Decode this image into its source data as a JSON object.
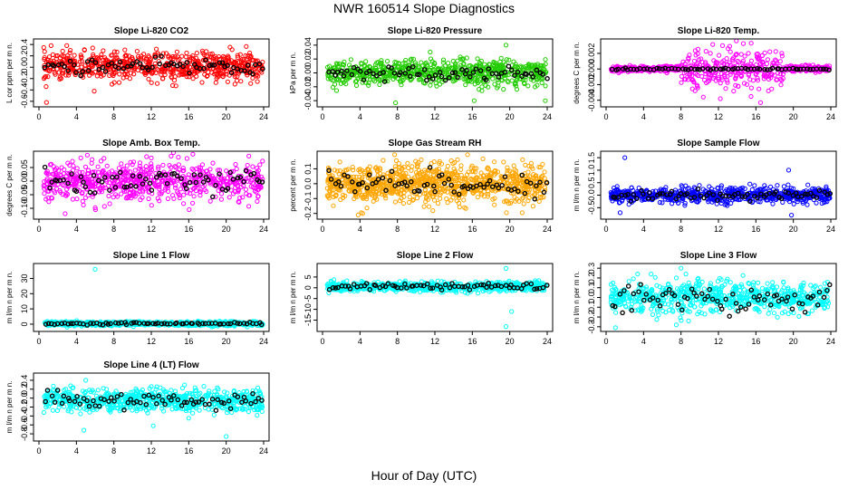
{
  "figure": {
    "title": "NWR  160514  Slope Diagnostics",
    "xlabel": "Hour of Day (UTC)"
  },
  "colors": {
    "red": "#ff0000",
    "green": "#22cc00",
    "magenta": "#ff00ff",
    "orange": "#ffa500",
    "blue": "#0000ff",
    "cyan": "#00ffff",
    "black": "#000000"
  },
  "chart_data": [
    {
      "type": "scatter",
      "title": "Slope Li-820 CO2",
      "ylabel": "L cor ppm per m n.",
      "color": "red",
      "xlim": [
        0,
        24
      ],
      "ylim": [
        -0.65,
        0.45
      ],
      "xticks": [
        0,
        4,
        8,
        12,
        16,
        20,
        24
      ],
      "yticks": [
        -0.6,
        -0.4,
        -0.2,
        0.0,
        0.2,
        0.4
      ],
      "ytick_labels": [
        "-0.6",
        "-0.4",
        "-0.2",
        "0.0",
        "0.2",
        "0.4"
      ],
      "center": 0.02,
      "spread": 0.12,
      "black_spread": 0.07,
      "outliers": [
        [
          0.8,
          -0.62
        ],
        [
          1.3,
          0.38
        ],
        [
          5.9,
          -0.42
        ],
        [
          7.8,
          -0.3
        ]
      ]
    },
    {
      "type": "scatter",
      "title": "Slope Li-820 Pressure",
      "ylabel": "kPa per m n.",
      "color": "green",
      "xlim": [
        0,
        24
      ],
      "ylim": [
        -0.045,
        0.045
      ],
      "xticks": [
        0,
        4,
        8,
        12,
        16,
        20,
        24
      ],
      "yticks": [
        -0.04,
        -0.02,
        0.0,
        0.02,
        0.04
      ],
      "ytick_labels": [
        "-0.04",
        "-0.02",
        "0.00",
        "0.02",
        "0.04"
      ],
      "center": 0.0,
      "spread": 0.009,
      "black_spread": 0.005,
      "outliers": [
        [
          7.8,
          -0.043
        ],
        [
          16.2,
          -0.04
        ],
        [
          19.6,
          0.04
        ],
        [
          23.8,
          -0.04
        ],
        [
          11.5,
          0.03
        ]
      ]
    },
    {
      "type": "scatter",
      "title": "Slope Li-820 Temp.",
      "ylabel": "degrees C per m n.",
      "color": "magenta",
      "xlim": [
        0,
        24
      ],
      "ylim": [
        -0.0045,
        0.0035
      ],
      "xticks": [
        0,
        4,
        8,
        12,
        16,
        20,
        24
      ],
      "yticks": [
        -0.004,
        -0.002,
        0.0,
        0.002
      ],
      "ytick_labels": [
        "-0.004",
        "-0.002",
        "0.000",
        "0.002"
      ],
      "center": 0.0,
      "spread": 0.0002,
      "black_spread": 5e-05,
      "burst": [
        8,
        19,
        0.0012
      ],
      "outliers": [
        [
          15.5,
          0.0033
        ],
        [
          16.5,
          -0.0043
        ],
        [
          12.2,
          -0.0038
        ],
        [
          9.5,
          -0.0028
        ]
      ]
    },
    {
      "type": "scatter",
      "title": "Slope Amb. Box Temp.",
      "ylabel": "degrees C per m n.",
      "color": "magenta",
      "xlim": [
        0,
        24
      ],
      "ylim": [
        -0.13,
        0.1
      ],
      "xticks": [
        0,
        4,
        8,
        12,
        16,
        20,
        24
      ],
      "yticks": [
        -0.1,
        -0.05,
        0.0,
        0.05
      ],
      "ytick_labels": [
        "-0.10",
        "-0.05",
        "0.00",
        "0.05"
      ],
      "center": 0.0,
      "spread": 0.035,
      "black_spread": 0.025,
      "outliers": [
        [
          2.8,
          -0.12
        ],
        [
          11.5,
          0.09
        ],
        [
          12.0,
          0.085
        ]
      ]
    },
    {
      "type": "scatter",
      "title": "Slope Gas Stream RH",
      "ylabel": "percent per m n.",
      "color": "orange",
      "xlim": [
        0,
        24
      ],
      "ylim": [
        -0.22,
        0.2
      ],
      "xticks": [
        0,
        4,
        8,
        12,
        16,
        20,
        24
      ],
      "yticks": [
        -0.2,
        -0.1,
        0.0,
        0.1
      ],
      "ytick_labels": [
        "-0.2",
        "-0.1",
        "0.0",
        "0.1"
      ],
      "center": 0.0,
      "spread": 0.065,
      "black_spread": 0.045,
      "dense": true,
      "outliers": [
        [
          3.8,
          -0.21
        ],
        [
          4.3,
          -0.2
        ]
      ]
    },
    {
      "type": "scatter",
      "title": "Slope Sample Flow",
      "ylabel": "m l/m n per m n.",
      "color": "blue",
      "xlim": [
        0,
        24
      ],
      "ylim": [
        -0.85,
        1.65
      ],
      "xticks": [
        0,
        4,
        8,
        12,
        16,
        20,
        24
      ],
      "yticks": [
        -0.5,
        0.0,
        0.5,
        1.0,
        1.5
      ],
      "ytick_labels": [
        "-0.5",
        "0.0",
        "0.5",
        "1.0",
        "1.5"
      ],
      "center": 0.0,
      "spread": 0.15,
      "black_spread": 0.1,
      "outliers": [
        [
          2.0,
          1.5
        ],
        [
          19.5,
          1.0
        ],
        [
          19.8,
          -0.8
        ],
        [
          1.5,
          -0.7
        ]
      ]
    },
    {
      "type": "scatter",
      "title": "Slope Line 1 Flow",
      "ylabel": "m l/m n per m n.",
      "color": "cyan",
      "xlim": [
        0,
        24
      ],
      "ylim": [
        -3,
        38
      ],
      "xticks": [
        0,
        4,
        8,
        12,
        16,
        20,
        24
      ],
      "yticks": [
        0,
        10,
        20,
        30
      ],
      "ytick_labels": [
        "0",
        "10",
        "20",
        "30"
      ],
      "center": 0.3,
      "spread": 0.7,
      "black_spread": 0.4,
      "outliers": [
        [
          6.0,
          36
        ],
        [
          3.0,
          -2
        ]
      ]
    },
    {
      "type": "scatter",
      "title": "Slope Line 2 Flow",
      "ylabel": "m l/m n per m n.",
      "color": "cyan",
      "xlim": [
        0,
        24
      ],
      "ylim": [
        -19,
        10
      ],
      "xticks": [
        0,
        4,
        8,
        12,
        16,
        20,
        24
      ],
      "yticks": [
        -15,
        -10,
        -5,
        0,
        5
      ],
      "ytick_labels": [
        "-15",
        "-10",
        "-5",
        "0",
        "5"
      ],
      "center": 0.5,
      "spread": 1.1,
      "black_spread": 0.8,
      "outliers": [
        [
          19.6,
          9
        ],
        [
          19.6,
          -18
        ],
        [
          20.2,
          -11
        ]
      ]
    },
    {
      "type": "scatter",
      "title": "Slope Line 3 Flow",
      "ylabel": "m l/m n per m n.",
      "color": "cyan",
      "xlim": [
        0,
        24
      ],
      "ylim": [
        -0.32,
        0.32
      ],
      "xticks": [
        0,
        4,
        8,
        12,
        16,
        20,
        24
      ],
      "yticks": [
        -0.3,
        -0.2,
        -0.1,
        0.0,
        0.1,
        0.2,
        0.3
      ],
      "ytick_labels": [
        "-0.3",
        "-0.2",
        "-0.1",
        "0.0",
        "0.1",
        "0.2",
        "0.3"
      ],
      "center": 0.0,
      "spread": 0.08,
      "black_spread": 0.08,
      "outliers": [
        [
          1.0,
          -0.31
        ],
        [
          8.0,
          0.3
        ],
        [
          7.5,
          -0.28
        ]
      ]
    },
    {
      "type": "scatter",
      "title": "Slope Line 4 (LT) Flow",
      "ylabel": "m l/m n per m n.",
      "color": "cyan",
      "xlim": [
        0,
        24
      ],
      "ylim": [
        -0.9,
        0.5
      ],
      "xticks": [
        0,
        4,
        8,
        12,
        16,
        20,
        24
      ],
      "yticks": [
        -0.8,
        -0.6,
        -0.4,
        -0.2,
        0.0,
        0.2,
        0.4
      ],
      "ytick_labels": [
        "-0.8",
        "-0.6",
        "-0.4",
        "-0.2",
        "0.0",
        "0.2",
        "0.4"
      ],
      "center": -0.05,
      "spread": 0.12,
      "black_spread": 0.09,
      "outliers": [
        [
          5.0,
          0.4
        ],
        [
          4.8,
          -0.72
        ],
        [
          12.2,
          -0.62
        ],
        [
          20.0,
          -0.86
        ],
        [
          16.0,
          -0.45
        ]
      ]
    }
  ]
}
